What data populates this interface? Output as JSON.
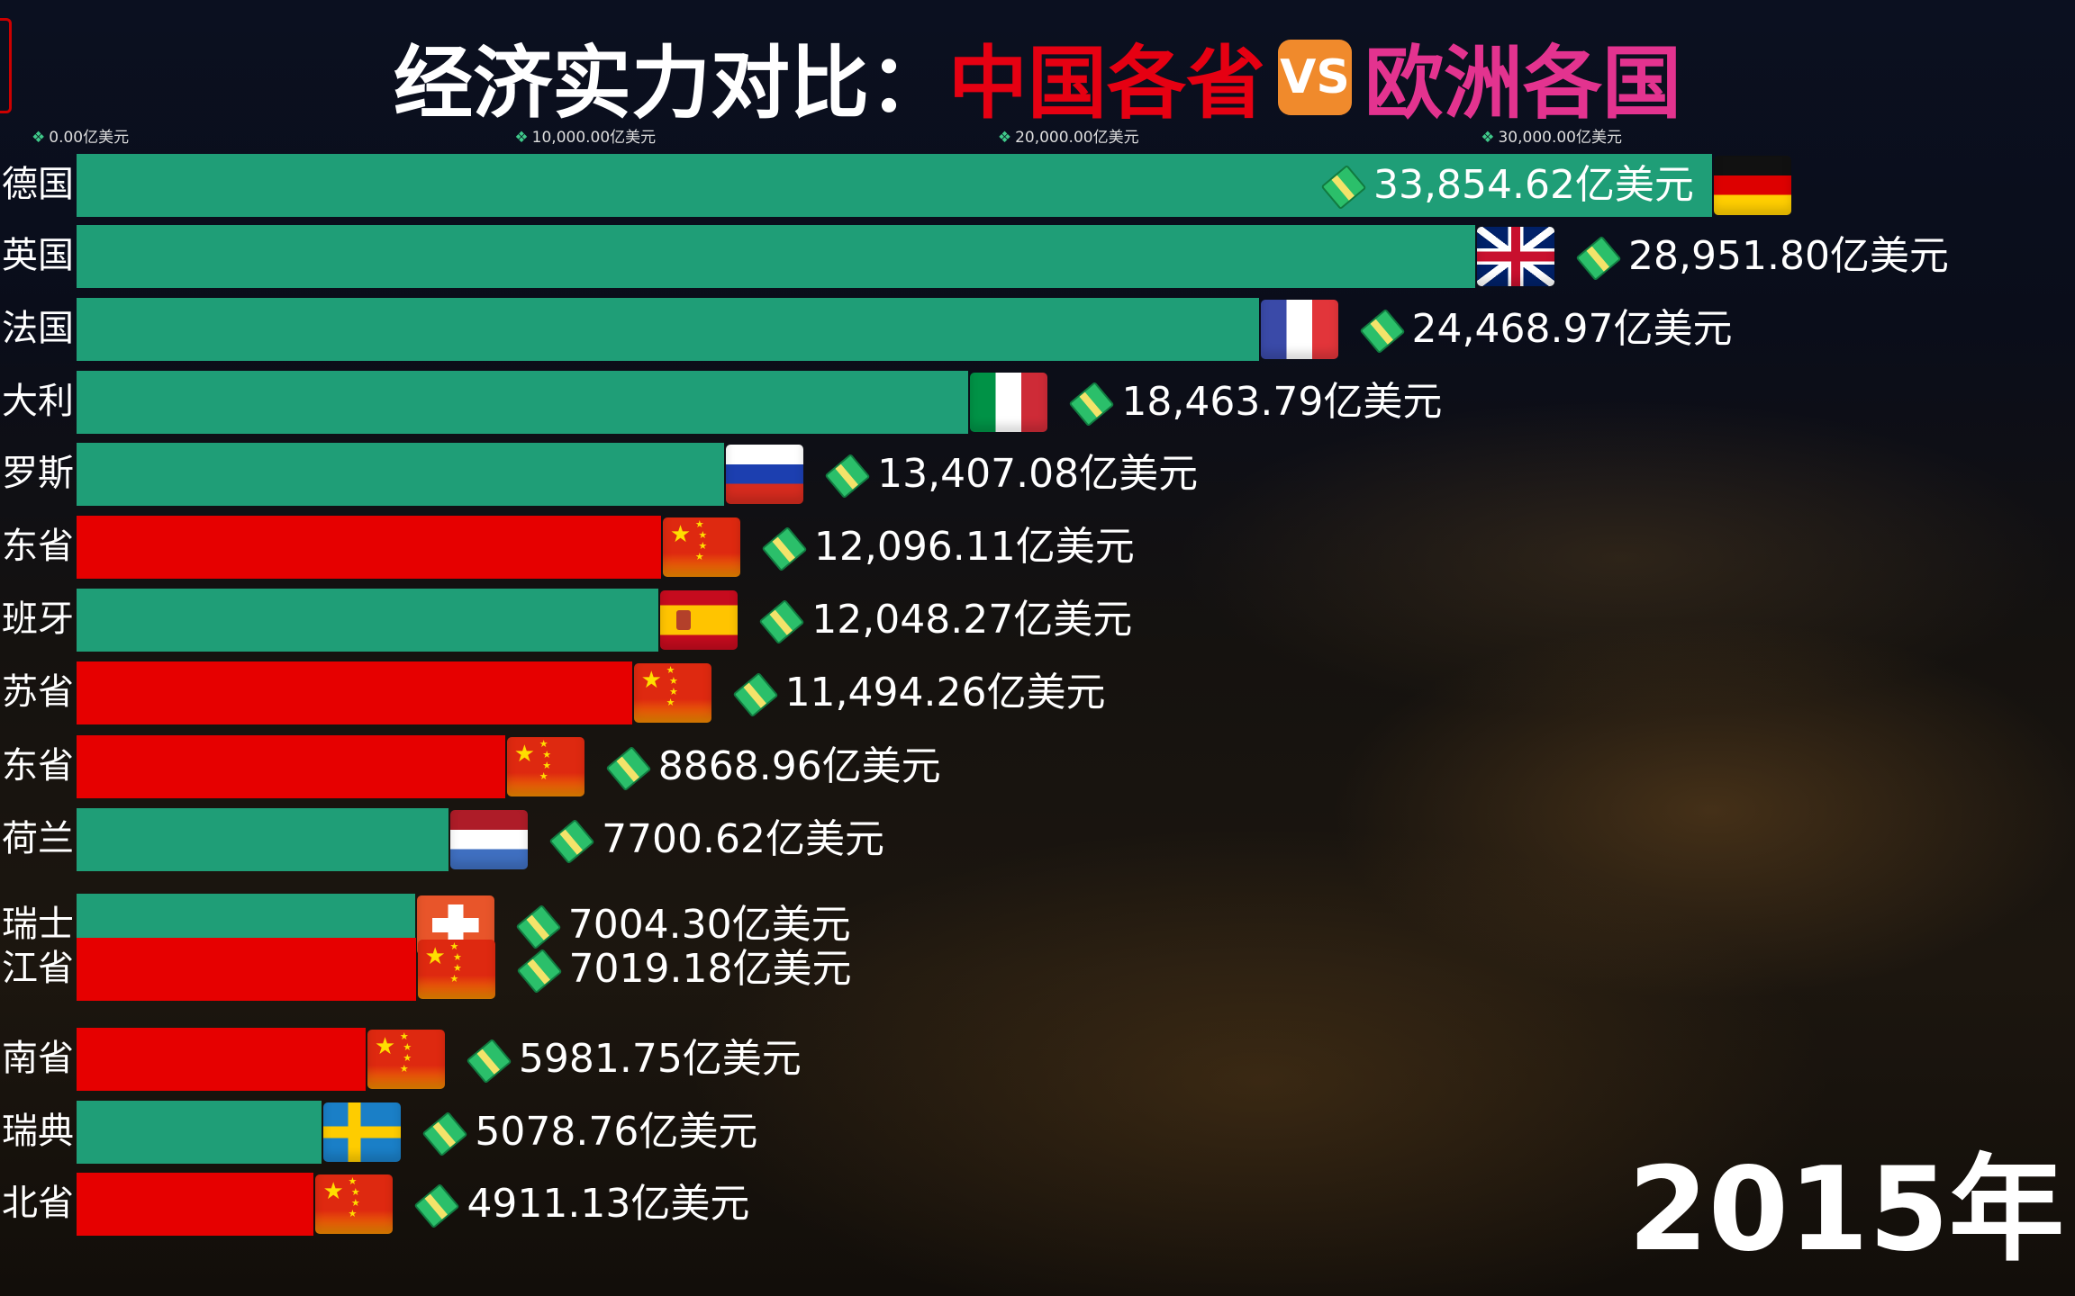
{
  "title": {
    "part1": "经济实力对比：",
    "part2": "中国各省",
    "vs": "VS",
    "part3": "欧洲各国",
    "colors": {
      "part1": "#ffffff",
      "part2": "#e60012",
      "vs_bg": "#f08a2c",
      "part3": "#e3338f"
    }
  },
  "chart_data": {
    "type": "bar",
    "orientation": "horizontal",
    "unit": "亿美元",
    "xlim": [
      0,
      35000
    ],
    "ticks": [
      {
        "value": 0,
        "label": "0.00亿美元"
      },
      {
        "value": 10000,
        "label": "10,000.00亿美元"
      },
      {
        "value": 20000,
        "label": "20,000.00亿美元"
      },
      {
        "value": 30000,
        "label": "30,000.00亿美元"
      }
    ],
    "legend_colors": {
      "europe": "#1f9e77",
      "china": "#e60000"
    },
    "bars": [
      {
        "label": "德国",
        "value": 33854.62,
        "value_label": "33,854.62亿美元",
        "group": "europe",
        "flag": "germany"
      },
      {
        "label": "英国",
        "value": 28951.8,
        "value_label": "28,951.80亿美元",
        "group": "europe",
        "flag": "uk"
      },
      {
        "label": "法国",
        "value": 24468.97,
        "value_label": "24,468.97亿美元",
        "group": "europe",
        "flag": "france"
      },
      {
        "label": "大利",
        "value": 18463.79,
        "value_label": "18,463.79亿美元",
        "group": "europe",
        "flag": "italy"
      },
      {
        "label": "罗斯",
        "value": 13407.08,
        "value_label": "13,407.08亿美元",
        "group": "europe",
        "flag": "russia"
      },
      {
        "label": "东省",
        "value": 12096.11,
        "value_label": "12,096.11亿美元",
        "group": "china",
        "flag": "china"
      },
      {
        "label": "班牙",
        "value": 12048.27,
        "value_label": "12,048.27亿美元",
        "group": "europe",
        "flag": "spain"
      },
      {
        "label": "苏省",
        "value": 11494.26,
        "value_label": "11,494.26亿美元",
        "group": "china",
        "flag": "china"
      },
      {
        "label": "东省",
        "value": 8868.96,
        "value_label": "8868.96亿美元",
        "group": "china",
        "flag": "china"
      },
      {
        "label": "荷兰",
        "value": 7700.62,
        "value_label": "7700.62亿美元",
        "group": "europe",
        "flag": "netherlands"
      },
      {
        "label": "瑞士",
        "value": 7004.3,
        "value_label": "7004.30亿美元",
        "group": "europe",
        "flag": "switzerland"
      },
      {
        "label": "江省",
        "value": 7019.18,
        "value_label": "7019.18亿美元",
        "group": "china",
        "flag": "china"
      },
      {
        "label": "南省",
        "value": 5981.75,
        "value_label": "5981.75亿美元",
        "group": "china",
        "flag": "china"
      },
      {
        "label": "瑞典",
        "value": 5078.76,
        "value_label": "5078.76亿美元",
        "group": "europe",
        "flag": "sweden"
      },
      {
        "label": "北省",
        "value": 4911.13,
        "value_label": "4911.13亿美元",
        "group": "china",
        "flag": "china"
      }
    ]
  },
  "year": "2015年"
}
